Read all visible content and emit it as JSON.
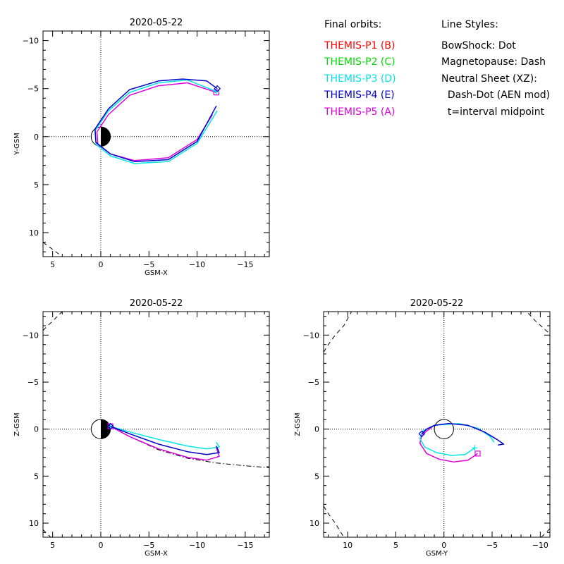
{
  "legend": {
    "orbits_title": "Final orbits:",
    "probes": [
      {
        "label": "THEMIS-P1 (B)",
        "color": "#ff0000"
      },
      {
        "label": "THEMIS-P2 (C)",
        "color": "#00dd00"
      },
      {
        "label": "THEMIS-P3 (D)",
        "color": "#00e5e5"
      },
      {
        "label": "THEMIS-P4 (E)",
        "color": "#0000cc"
      },
      {
        "label": "THEMIS-P5 (A)",
        "color": "#dd00dd"
      }
    ],
    "styles_title": "Line Styles:",
    "styles": [
      "BowShock: Dot",
      "Magnetopause: Dash",
      "Neutral Sheet (XZ):",
      "  Dash-Dot (AEN mod)",
      "  t=interval midpoint"
    ]
  },
  "chart_data": [
    {
      "type": "line",
      "title": "2020-05-22",
      "xlabel": "GSM-X",
      "ylabel": "Y-GSM",
      "xlim": [
        6,
        -17.5
      ],
      "ylim": [
        -11,
        12.5
      ],
      "xticks": [
        5,
        0,
        -5,
        -10,
        -15
      ],
      "yticks": [
        -10,
        -5,
        0,
        5,
        10
      ],
      "earth": "half-shaded",
      "boundaries": [
        {
          "name": "magnetopause",
          "style": "dash",
          "points": [
            [
              6,
              11
            ],
            [
              4,
              12.5
            ]
          ]
        },
        {
          "name": "magnetopause",
          "style": "dash",
          "points": [
            [
              6,
              -11
            ],
            [
              5.3,
              -11
            ]
          ]
        }
      ],
      "series": [
        {
          "probe": "THEMIS-P5",
          "color": "#dd00dd",
          "end_marker": "square",
          "points": [
            [
              -12,
              -4.6
            ],
            [
              -9,
              -5.6
            ],
            [
              -6,
              -5.3
            ],
            [
              -3,
              -4.3
            ],
            [
              -0.8,
              -2.3
            ],
            [
              0.4,
              -0.5
            ],
            [
              0.3,
              0.8
            ],
            [
              -1,
              1.8
            ],
            [
              -3.5,
              2.5
            ],
            [
              -7,
              2.2
            ],
            [
              -10,
              0.3
            ],
            [
              -11.6,
              -2.3
            ]
          ]
        },
        {
          "probe": "THEMIS-P3",
          "color": "#00e5e5",
          "end_marker": "plus",
          "points": [
            [
              -12,
              -4.7
            ],
            [
              -9,
              -5.9
            ],
            [
              -6,
              -5.6
            ],
            [
              -3,
              -4.6
            ],
            [
              -0.8,
              -2.7
            ],
            [
              0.6,
              -0.6
            ],
            [
              0.5,
              0.8
            ],
            [
              -1,
              2
            ],
            [
              -3.5,
              2.8
            ],
            [
              -7,
              2.6
            ],
            [
              -10,
              0.7
            ],
            [
              -12.1,
              -2.7
            ]
          ]
        },
        {
          "probe": "THEMIS-P4",
          "color": "#0000cc",
          "end_marker": "diamond",
          "points": [
            [
              -12.1,
              -5.0
            ],
            [
              -11,
              -5.8
            ],
            [
              -8.5,
              -6.0
            ],
            [
              -6,
              -5.8
            ],
            [
              -3,
              -4.9
            ],
            [
              -0.8,
              -2.9
            ],
            [
              0.6,
              -0.8
            ],
            [
              0.5,
              0.6
            ],
            [
              -1,
              1.8
            ],
            [
              -3.5,
              2.6
            ],
            [
              -7,
              2.4
            ],
            [
              -10,
              0.5
            ],
            [
              -12.0,
              -3.2
            ]
          ]
        }
      ]
    },
    {
      "type": "line",
      "title": "2020-05-22",
      "xlabel": "GSM-X",
      "ylabel": "Z-GSM",
      "xlim": [
        6,
        -17.5
      ],
      "ylim": [
        -12.5,
        11.5
      ],
      "xticks": [
        5,
        0,
        -5,
        -10,
        -15
      ],
      "yticks": [
        -10,
        -5,
        0,
        5,
        10
      ],
      "earth": "half-shaded",
      "boundaries": [
        {
          "name": "magnetopause",
          "style": "dash",
          "points": [
            [
              6,
              -10.5
            ],
            [
              4,
              -12.5
            ]
          ]
        },
        {
          "name": "magnetopause",
          "style": "dash",
          "points": [
            [
              6,
              10.7
            ],
            [
              5.2,
              11.5
            ]
          ]
        },
        {
          "name": "neutral sheet",
          "style": "dashdot",
          "points": [
            [
              -1,
              -0.3
            ],
            [
              -3,
              0.8
            ],
            [
              -6,
              2.2
            ],
            [
              -9,
              3.1
            ],
            [
              -12,
              3.6
            ],
            [
              -15,
              3.9
            ],
            [
              -17.5,
              4.1
            ]
          ]
        }
      ],
      "series": [
        {
          "probe": "THEMIS-P5",
          "color": "#dd00dd",
          "end_marker": "square",
          "points": [
            [
              -1,
              -0.3
            ],
            [
              -3,
              0.8
            ],
            [
              -6,
              2.1
            ],
            [
              -9,
              3.0
            ],
            [
              -11,
              3.3
            ],
            [
              -12.3,
              2.9
            ],
            [
              -12,
              2.0
            ]
          ]
        },
        {
          "probe": "THEMIS-P3",
          "color": "#00e5e5",
          "end_marker": "plus",
          "points": [
            [
              -1,
              -0.3
            ],
            [
              -3,
              0.3
            ],
            [
              -6,
              1.1
            ],
            [
              -9,
              1.8
            ],
            [
              -11,
              2.1
            ],
            [
              -12.3,
              1.9
            ],
            [
              -12,
              1.4
            ]
          ]
        },
        {
          "probe": "THEMIS-P4",
          "color": "#0000cc",
          "end_marker": "diamond",
          "points": [
            [
              -1,
              -0.3
            ],
            [
              -3,
              0.5
            ],
            [
              -6,
              1.6
            ],
            [
              -9,
              2.4
            ],
            [
              -11,
              2.7
            ],
            [
              -12.3,
              2.5
            ],
            [
              -12,
              1.8
            ]
          ]
        }
      ]
    },
    {
      "type": "line",
      "title": "2020-05-22",
      "xlabel": "GSM-Y",
      "ylabel": "Z-GSM",
      "xlim": [
        12.5,
        -11
      ],
      "ylim": [
        -12.5,
        11.5
      ],
      "xticks": [
        10,
        5,
        0,
        -5,
        -10
      ],
      "yticks": [
        -10,
        -5,
        0,
        5,
        10
      ],
      "earth": "outline",
      "boundaries": [
        {
          "name": "magnetopause",
          "style": "dash",
          "points": [
            [
              12.5,
              8.2
            ],
            [
              12,
              9
            ],
            [
              11.3,
              10
            ],
            [
              10.4,
              11.5
            ]
          ]
        },
        {
          "name": "magnetopause",
          "style": "dash",
          "points": [
            [
              12.5,
              -8.2
            ],
            [
              12,
              -9
            ],
            [
              11.3,
              -10
            ],
            [
              10.4,
              -11
            ],
            [
              9.6,
              -12.5
            ]
          ]
        },
        {
          "name": "magnetopause",
          "style": "dash",
          "points": [
            [
              -10.8,
              -10.3
            ],
            [
              -9.5,
              -11.5
            ],
            [
              -8.6,
              -12.5
            ]
          ]
        },
        {
          "name": "magnetopause",
          "style": "dash",
          "points": [
            [
              -11,
              10.6
            ],
            [
              -10.1,
              11.5
            ]
          ]
        }
      ],
      "series": [
        {
          "probe": "THEMIS-P5",
          "color": "#dd00dd",
          "end_marker": "square",
          "points": [
            [
              -3.5,
              2.6
            ],
            [
              -2.5,
              3.3
            ],
            [
              -1,
              3.5
            ],
            [
              0.5,
              3.2
            ],
            [
              1.8,
              2.6
            ],
            [
              2.5,
              1.5
            ],
            [
              2.3,
              0.6
            ],
            [
              1.0,
              -0.4
            ]
          ]
        },
        {
          "probe": "THEMIS-P3",
          "color": "#00e5e5",
          "end_marker": "plus",
          "points": [
            [
              -3.2,
              2.0
            ],
            [
              -2.2,
              2.7
            ],
            [
              -0.8,
              2.8
            ],
            [
              0.8,
              2.5
            ],
            [
              2.0,
              1.9
            ],
            [
              2.5,
              1.0
            ],
            [
              2.2,
              0.2
            ],
            [
              1.0,
              -0.4
            ],
            [
              -1.5,
              -0.6
            ],
            [
              -3.5,
              -0.1
            ],
            [
              -4.8,
              0.8
            ],
            [
              -5.2,
              1.4
            ]
          ]
        },
        {
          "probe": "THEMIS-P4",
          "color": "#0000cc",
          "end_marker": "diamond",
          "points": [
            [
              2.3,
              0.5
            ],
            [
              1.8,
              0.0
            ],
            [
              1.0,
              -0.4
            ],
            [
              -0.5,
              -0.6
            ],
            [
              -2.5,
              -0.4
            ],
            [
              -4.2,
              0.3
            ],
            [
              -5.5,
              1.1
            ],
            [
              -6.2,
              1.6
            ],
            [
              -5.6,
              1.7
            ]
          ]
        }
      ]
    }
  ]
}
